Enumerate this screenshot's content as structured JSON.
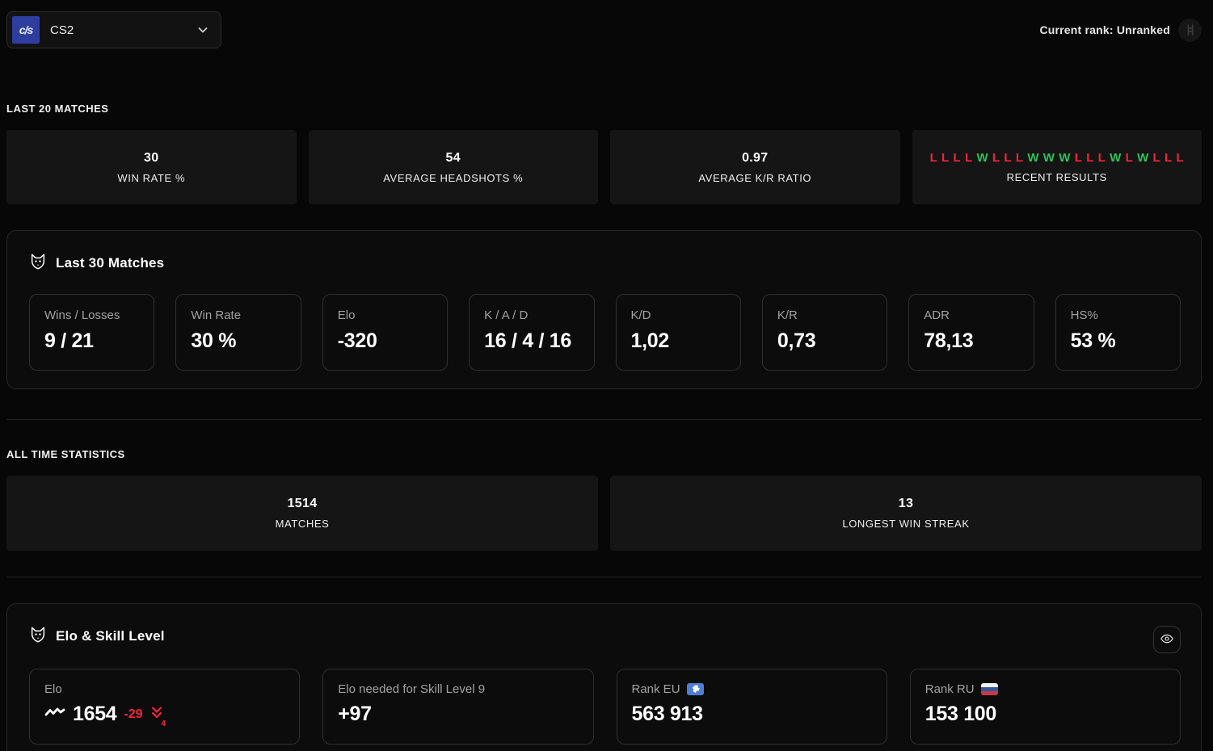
{
  "header": {
    "game_selector": {
      "label": "CS2",
      "logo_text": "c/s",
      "icon": "cs2-logo"
    },
    "current_rank_label": "Current rank: Unranked",
    "rank_icon": "ladder-icon"
  },
  "last20": {
    "section_title": "LAST 20 MATCHES",
    "cards": [
      {
        "value": "30",
        "label": "WIN RATE %"
      },
      {
        "value": "54",
        "label": "AVERAGE HEADSHOTS %"
      },
      {
        "value": "0.97",
        "label": "AVERAGE K/R RATIO"
      }
    ],
    "recent_results": {
      "label": "RECENT RESULTS",
      "sequence": [
        "L",
        "L",
        "L",
        "L",
        "W",
        "L",
        "L",
        "L",
        "W",
        "W",
        "W",
        "L",
        "L",
        "L",
        "W",
        "L",
        "W",
        "L",
        "L",
        "L"
      ]
    }
  },
  "last30": {
    "title": "Last 30 Matches",
    "icon": "wolf-icon",
    "stats": [
      {
        "label": "Wins / Losses",
        "value": "9 / 21"
      },
      {
        "label": "Win Rate",
        "value": "30 %"
      },
      {
        "label": "Elo",
        "value": "-320"
      },
      {
        "label": "K / A / D",
        "value": "16 / 4 / 16"
      },
      {
        "label": "K/D",
        "value": "1,02"
      },
      {
        "label": "K/R",
        "value": "0,73"
      },
      {
        "label": "ADR",
        "value": "78,13"
      },
      {
        "label": "HS%",
        "value": "53 %"
      }
    ]
  },
  "all_time": {
    "section_title": "ALL TIME STATISTICS",
    "cards": [
      {
        "value": "1514",
        "label": "MATCHES"
      },
      {
        "value": "13",
        "label": "LONGEST WIN STREAK"
      }
    ]
  },
  "elo_skill": {
    "title": "Elo & Skill Level",
    "icon": "wolf-icon",
    "visibility_icon": "eye-icon",
    "elo": {
      "label": "Elo",
      "trend_icon": "zigzag-line-icon",
      "value": "1654",
      "change": "-29",
      "drop_icon": "double-chevron-down-icon",
      "change_levels": "4"
    },
    "needed": {
      "label": "Elo needed for Skill Level 9",
      "value": "+97"
    },
    "rank_eu": {
      "label": "Rank EU",
      "badge_icon": "eu-flag",
      "value": "563 913"
    },
    "rank_ru": {
      "label": "Rank RU",
      "badge_icon": "ru-flag",
      "value": "153 100"
    }
  },
  "colors": {
    "win_green": "#2ec15a",
    "loss_red": "#f5233d",
    "cs2_logo_blue": "#2e3e9e",
    "eu_badge_blue": "#4d80d2",
    "background": "#070707",
    "card_background": "#151515"
  }
}
